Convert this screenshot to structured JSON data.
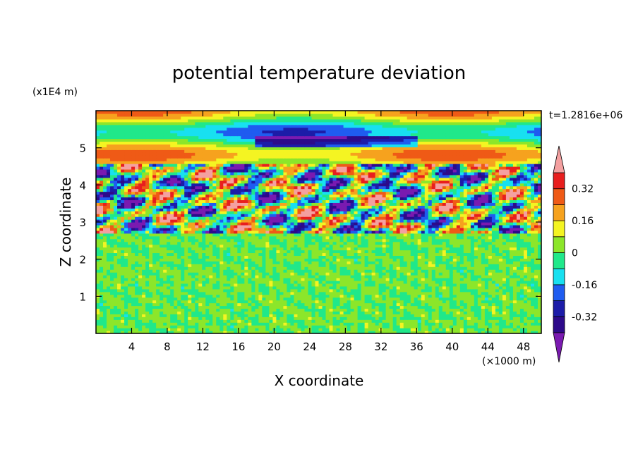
{
  "chart_data": {
    "type": "heatmap",
    "title": "potential temperature deviation",
    "xlabel": "X coordinate",
    "ylabel": "Z coordinate",
    "x_unit": "(×1000 m)",
    "y_unit": "(x1E4 m)",
    "time_label": "t=1.2816e+06",
    "xlim": [
      0,
      50
    ],
    "ylim": [
      0,
      6
    ],
    "x_ticks": [
      4,
      8,
      12,
      16,
      20,
      24,
      28,
      32,
      36,
      40,
      44,
      48
    ],
    "y_ticks": [
      1,
      2,
      3,
      4,
      5
    ],
    "colorbar": {
      "levels": [
        -0.4,
        -0.32,
        -0.24,
        -0.16,
        -0.08,
        0,
        0.08,
        0.16,
        0.24,
        0.32,
        0.4
      ],
      "colors": [
        "#2d0a8a",
        "#1c1ca8",
        "#1f5cf0",
        "#18e0f0",
        "#20e88a",
        "#8ce62a",
        "#f4f422",
        "#f6a21e",
        "#ef5a16",
        "#e81e1e"
      ],
      "under_color": "#7a1ab0",
      "over_color": "#f4a0a0",
      "tick_labels": [
        "0.32",
        "0.16",
        "0",
        "-0.16",
        "-0.32"
      ],
      "tick_values": [
        0.32,
        0.16,
        0,
        -0.16,
        -0.32
      ]
    },
    "regions": [
      {
        "z_range": [
          0,
          2.7
        ],
        "pattern": "small-scale noise",
        "range": [
          -0.08,
          0.08
        ]
      },
      {
        "z_range": [
          2.7,
          4.6
        ],
        "pattern": "strong turbulent layers",
        "range": [
          -0.45,
          0.45
        ]
      },
      {
        "z_range": [
          4.6,
          6
        ],
        "pattern": "smooth stratified bands",
        "range": [
          -0.3,
          0.3
        ]
      }
    ]
  }
}
